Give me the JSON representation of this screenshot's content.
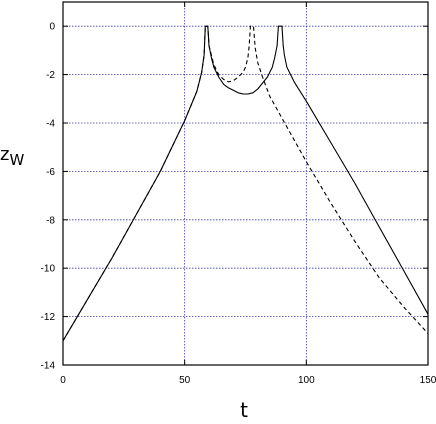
{
  "chart_data": {
    "type": "line",
    "title": "",
    "xlabel": "t",
    "ylabel": "z",
    "ylabel_sub": "W",
    "xlim": [
      0,
      150
    ],
    "ylim": [
      -14,
      1
    ],
    "xticks": [
      0,
      50,
      100,
      150
    ],
    "yticks": [
      0,
      -2,
      -4,
      -6,
      -8,
      -10,
      -12,
      -14
    ],
    "grid": true,
    "grid_color": "#3a3aa0",
    "line_color": "#000000",
    "legend": "none",
    "series": [
      {
        "style": "solid",
        "x": [
          0,
          10,
          20,
          30,
          40,
          50,
          55,
          57,
          58,
          58.5,
          59.5,
          60,
          61,
          62,
          64,
          66,
          68,
          70,
          72,
          74,
          76,
          78,
          80,
          82,
          84,
          86,
          87,
          88,
          88.5,
          89,
          90,
          90.5,
          91,
          92,
          95,
          100,
          110,
          120,
          130,
          140,
          150
        ],
        "y": [
          -13,
          -11.3,
          -9.6,
          -7.8,
          -6.0,
          -3.9,
          -2.7,
          -1.9,
          -1.2,
          0,
          0,
          -0.8,
          -1.3,
          -1.7,
          -2.1,
          -2.4,
          -2.55,
          -2.65,
          -2.75,
          -2.8,
          -2.8,
          -2.75,
          -2.6,
          -2.35,
          -2.1,
          -1.7,
          -1.3,
          -0.8,
          0,
          0,
          0,
          -0.8,
          -1.2,
          -1.7,
          -2.3,
          -3.1,
          -4.8,
          -6.5,
          -8.3,
          -10.1,
          -11.9
        ]
      },
      {
        "style": "dashed",
        "x": [
          0,
          10,
          20,
          30,
          40,
          50,
          55,
          57,
          58,
          58.5,
          59.5,
          60,
          62,
          64,
          66,
          68,
          70,
          72,
          74,
          75,
          76,
          76.5,
          77,
          78,
          78.3,
          79,
          80,
          82,
          85,
          90,
          100,
          110,
          120,
          130,
          140,
          150
        ],
        "y": [
          -13,
          -11.3,
          -9.6,
          -7.8,
          -6.0,
          -3.9,
          -2.7,
          -1.9,
          -1.2,
          0,
          0,
          -0.8,
          -1.6,
          -2.0,
          -2.2,
          -2.3,
          -2.25,
          -2.1,
          -1.9,
          -1.7,
          -1.3,
          -0.8,
          0,
          0,
          0,
          -0.9,
          -1.5,
          -2.1,
          -2.9,
          -3.8,
          -5.6,
          -7.3,
          -8.9,
          -10.4,
          -11.6,
          -12.7
        ]
      }
    ]
  }
}
